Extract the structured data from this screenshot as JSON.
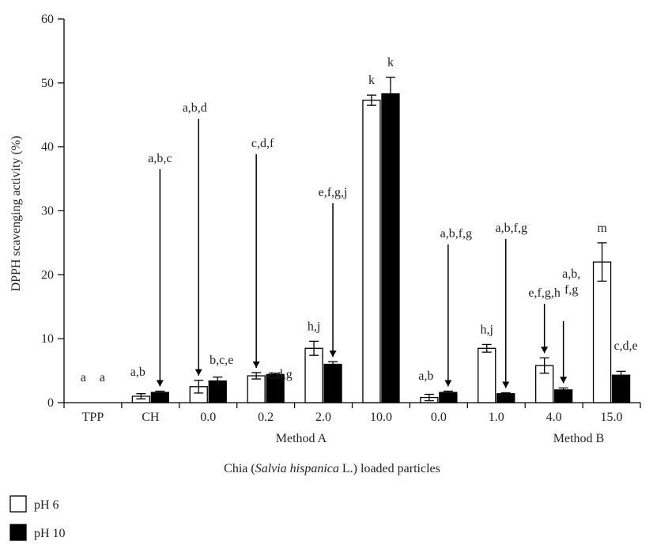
{
  "chart_data": {
    "type": "bar",
    "ylabel": "DPPH scavenging activity (%)",
    "xlabel_parts": [
      "Chia (",
      "Salvia hispanica",
      " L.) loaded particles"
    ],
    "ylim": [
      0,
      60
    ],
    "yticks": [
      0,
      10,
      20,
      30,
      40,
      50,
      60
    ],
    "categories": [
      "TPP",
      "CH",
      "0.0",
      "0.2",
      "2.0",
      "10.0",
      "0.0",
      "1.0",
      "4.0",
      "15.0"
    ],
    "groups": [
      {
        "label": "Method A",
        "categories": [
          "0.0",
          "0.2",
          "2.0",
          "10.0"
        ]
      },
      {
        "label": "Method B",
        "categories": [
          "0.0",
          "1.0",
          "4.0",
          "15.0"
        ]
      }
    ],
    "series": [
      {
        "name": "pH 6",
        "color": "#ffffff",
        "values": [
          0,
          1.0,
          2.5,
          4.2,
          8.5,
          47.3,
          0.8,
          8.5,
          5.8,
          22.0
        ],
        "errors": [
          0,
          0.4,
          1.0,
          0.5,
          1.1,
          0.8,
          0.5,
          0.6,
          1.2,
          3.0
        ],
        "letters": [
          "a",
          "a,b",
          "a,b,d",
          "c,d,f",
          "h,j",
          "k",
          "a,b",
          "h,j",
          "e,f,g,h",
          "m"
        ]
      },
      {
        "name": "pH 10",
        "color": "#000000",
        "values": [
          0,
          1.6,
          3.4,
          4.4,
          6.0,
          48.3,
          1.6,
          1.4,
          2.0,
          4.3
        ],
        "errors": [
          0,
          0.2,
          0.6,
          0.2,
          0.4,
          2.6,
          0.2,
          0.15,
          0.3,
          0.6
        ],
        "letters": [
          "a",
          "a,b,c",
          "b,c,e",
          "c,d,g",
          "e,f,g,j",
          "k",
          "a,b,f,g",
          "a,b,f,g",
          "a,b,\nf,g",
          "c,d,e"
        ]
      }
    ],
    "legend_position": "bottom-left",
    "grid": false
  }
}
